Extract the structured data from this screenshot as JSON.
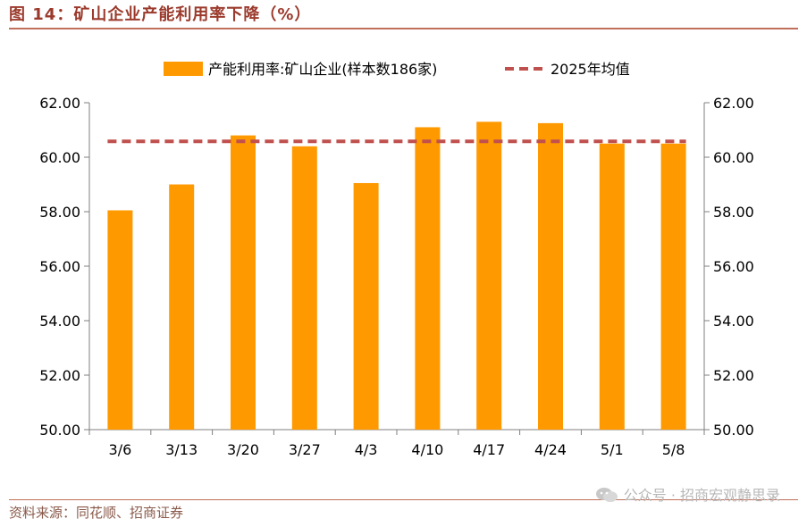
{
  "figure_title": "图 14：矿山企业产能利用率下降（%）",
  "source": "资料来源：同花顺、招商证券",
  "watermark": "公众号 · 招商宏观静思录",
  "colors": {
    "bar": "#ff9900",
    "avg_line": "#c0504d",
    "axis": "#7f7f7f",
    "title": "#9b3a2c"
  },
  "chart_data": {
    "type": "bar",
    "categories": [
      "3/6",
      "3/13",
      "3/20",
      "3/27",
      "4/3",
      "4/10",
      "4/17",
      "4/24",
      "5/1",
      "5/8"
    ],
    "series": [
      {
        "name": "产能利用率:矿山企业(样本数186家)",
        "type": "bar",
        "values": [
          58.05,
          59.0,
          60.8,
          60.4,
          59.05,
          61.1,
          61.3,
          61.25,
          60.5,
          60.5
        ]
      },
      {
        "name": "2025年均值",
        "type": "line",
        "style": "dashed",
        "values": [
          60.58,
          60.58,
          60.58,
          60.58,
          60.58,
          60.58,
          60.58,
          60.58,
          60.58,
          60.58
        ]
      }
    ],
    "ylim": [
      50,
      62
    ],
    "yticks": [
      "50.00",
      "52.00",
      "54.00",
      "56.00",
      "58.00",
      "60.00",
      "62.00"
    ],
    "y2ticks": [
      "50.00",
      "52.00",
      "54.00",
      "56.00",
      "58.00",
      "60.00",
      "62.00"
    ],
    "legend_position": "top-center",
    "grid": false
  }
}
